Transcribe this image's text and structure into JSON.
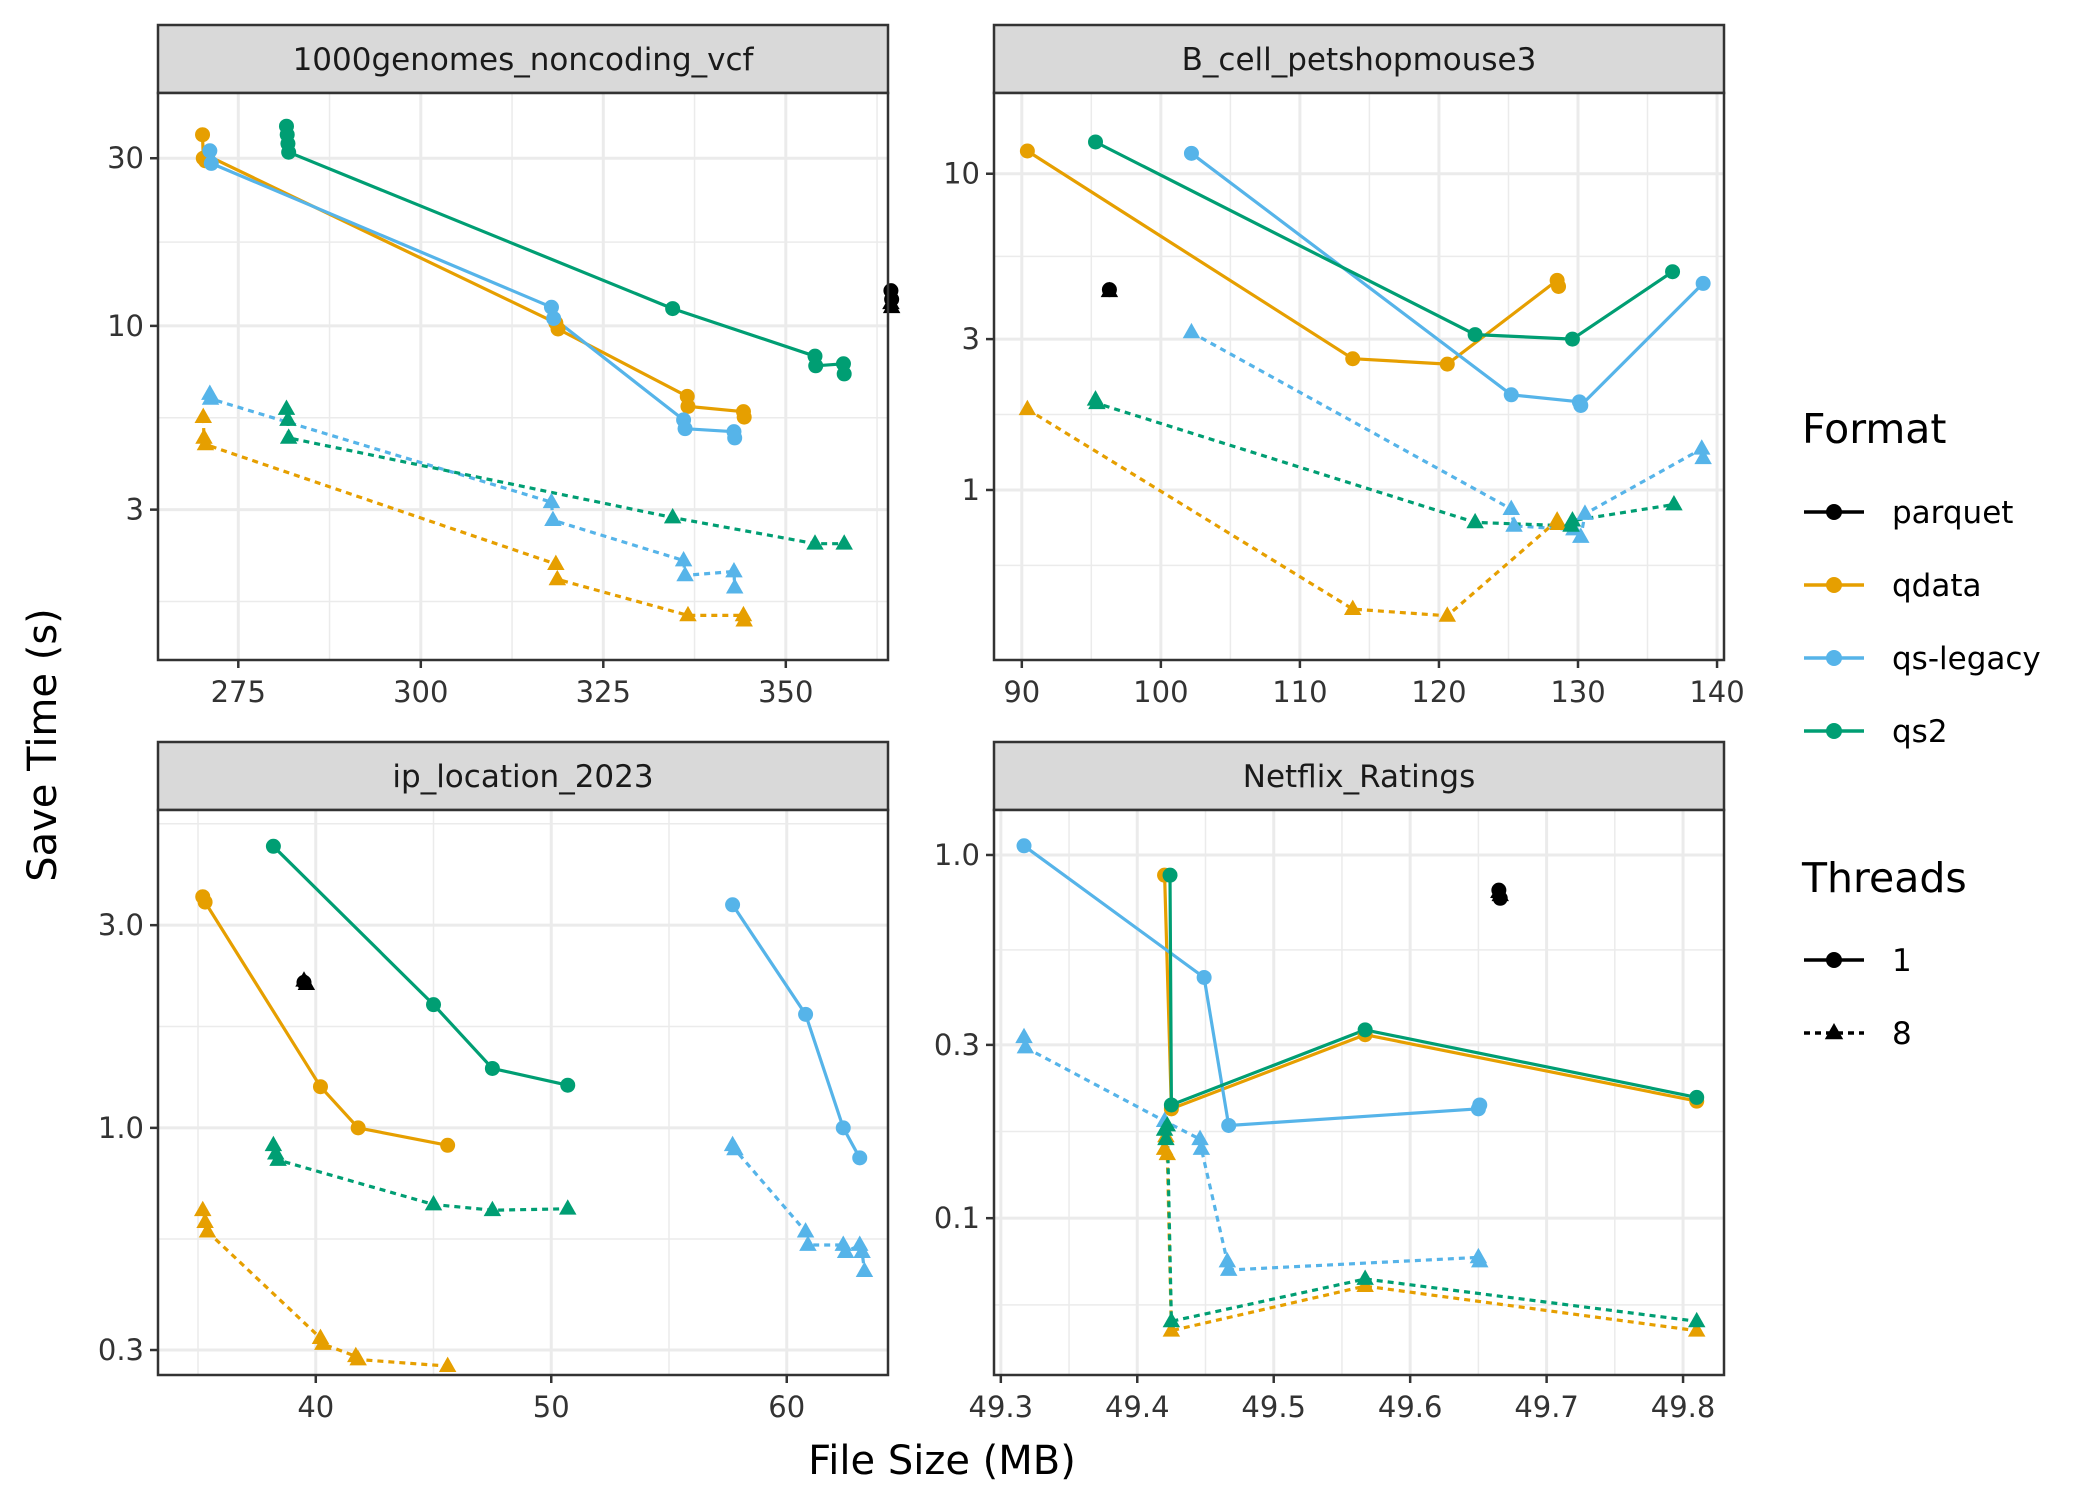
{
  "chart_data": {
    "type": "line",
    "xlabel": "File Size (MB)",
    "ylabel": "Save Time (s)",
    "y_scale": "log",
    "grid": true,
    "legend_position": "right",
    "legend": {
      "format_title": "Format",
      "formats": [
        {
          "name": "parquet",
          "color": "#000000"
        },
        {
          "name": "qdata",
          "color": "#E69F00"
        },
        {
          "name": "qs-legacy",
          "color": "#56B4E9"
        },
        {
          "name": "qs2",
          "color": "#009E73"
        }
      ],
      "threads_title": "Threads",
      "threads": [
        {
          "name": "1",
          "line": "solid",
          "shape": "circle"
        },
        {
          "name": "8",
          "line": "dotted",
          "shape": "triangle"
        }
      ]
    },
    "panels": [
      {
        "title": "1000genomes_noncoding_vcf",
        "xlim": [
          264,
          364
        ],
        "ylim": [
          1.12,
          46
        ],
        "x_ticks": [
          275,
          300,
          325,
          350
        ],
        "x_tick_labels": [
          "275",
          "300",
          "325",
          "350"
        ],
        "y_ticks": [
          3,
          10,
          30
        ],
        "y_tick_labels": [
          "3",
          "10",
          "30"
        ],
        "series": [
          {
            "format": "qdata",
            "threads": "1",
            "points": [
              [
                270.1,
                35.0
              ],
              [
                270.2,
                30.0
              ],
              [
                270.5,
                29.5
              ],
              [
                270.8,
                30.5
              ],
              [
                318.5,
                10.2
              ],
              [
                318.8,
                9.8
              ],
              [
                336.5,
                6.3
              ],
              [
                336.6,
                5.9
              ],
              [
                344.2,
                5.7
              ],
              [
                344.3,
                5.5
              ]
            ]
          },
          {
            "format": "qs-legacy",
            "threads": "1",
            "points": [
              [
                271.1,
                31.5
              ],
              [
                271.3,
                29.0
              ],
              [
                317.9,
                11.3
              ],
              [
                318.2,
                10.5
              ],
              [
                336.0,
                5.4
              ],
              [
                336.2,
                5.1
              ],
              [
                342.9,
                5.0
              ],
              [
                343.0,
                4.8
              ]
            ]
          },
          {
            "format": "qs2",
            "threads": "1",
            "points": [
              [
                281.6,
                37.0
              ],
              [
                281.7,
                35.0
              ],
              [
                281.8,
                33.0
              ],
              [
                281.9,
                31.2
              ],
              [
                334.5,
                11.2
              ],
              [
                354.0,
                8.2
              ],
              [
                354.1,
                7.7
              ],
              [
                357.9,
                7.8
              ],
              [
                358.0,
                7.3
              ]
            ]
          },
          {
            "format": "parquet",
            "threads": "1",
            "points": [
              [
                364.4,
                12.6
              ],
              [
                364.5,
                11.9
              ]
            ]
          },
          {
            "format": "qdata",
            "threads": "8",
            "points": [
              [
                270.2,
                5.5
              ],
              [
                270.3,
                4.8
              ],
              [
                270.5,
                4.6
              ],
              [
                318.5,
                2.1
              ],
              [
                318.7,
                1.9
              ],
              [
                336.6,
                1.5
              ],
              [
                344.2,
                1.5
              ],
              [
                344.3,
                1.45
              ]
            ]
          },
          {
            "format": "qs-legacy",
            "threads": "8",
            "points": [
              [
                271.1,
                6.4
              ],
              [
                271.2,
                6.2
              ],
              [
                317.9,
                3.15
              ],
              [
                318.1,
                2.8
              ],
              [
                336.0,
                2.15
              ],
              [
                336.2,
                1.95
              ],
              [
                342.9,
                2.0
              ],
              [
                343.0,
                1.8
              ]
            ]
          },
          {
            "format": "qs2",
            "threads": "8",
            "points": [
              [
                281.6,
                5.8
              ],
              [
                281.8,
                5.4
              ],
              [
                281.9,
                4.8
              ],
              [
                334.5,
                2.85
              ],
              [
                354.0,
                2.4
              ],
              [
                358.0,
                2.4
              ]
            ]
          },
          {
            "format": "parquet",
            "threads": "8",
            "points": [
              [
                364.4,
                11.6
              ],
              [
                364.5,
                11.3
              ]
            ]
          }
        ]
      },
      {
        "title": "B_cell_petshopmouse3",
        "xlim": [
          88,
          140.5
        ],
        "ylim": [
          0.29,
          18
        ],
        "x_ticks": [
          90,
          100,
          110,
          120,
          130,
          140
        ],
        "x_tick_labels": [
          "90",
          "100",
          "110",
          "120",
          "130",
          "140"
        ],
        "y_ticks": [
          1,
          3,
          10
        ],
        "y_tick_labels": [
          "1",
          "3",
          "10"
        ],
        "series": [
          {
            "format": "qdata",
            "threads": "1",
            "points": [
              [
                90.4,
                11.8
              ],
              [
                113.8,
                2.6
              ],
              [
                120.6,
                2.5
              ],
              [
                128.5,
                4.6
              ],
              [
                128.6,
                4.4
              ]
            ]
          },
          {
            "format": "qs-legacy",
            "threads": "1",
            "points": [
              [
                102.2,
                11.6
              ],
              [
                125.2,
                2.0
              ],
              [
                130.1,
                1.9
              ],
              [
                130.2,
                1.85
              ],
              [
                139.0,
                4.5
              ]
            ]
          },
          {
            "format": "qs2",
            "threads": "1",
            "points": [
              [
                95.3,
                12.6
              ],
              [
                122.6,
                3.1
              ],
              [
                129.6,
                3.0
              ],
              [
                136.8,
                4.9
              ]
            ]
          },
          {
            "format": "parquet",
            "threads": "1",
            "points": [
              [
                96.3,
                4.3
              ]
            ]
          },
          {
            "format": "qdata",
            "threads": "8",
            "points": [
              [
                90.4,
                1.8
              ],
              [
                113.8,
                0.42
              ],
              [
                120.6,
                0.4
              ],
              [
                128.5,
                0.8
              ],
              [
                128.6,
                0.78
              ]
            ]
          },
          {
            "format": "qs-legacy",
            "threads": "8",
            "points": [
              [
                102.2,
                3.15
              ],
              [
                125.2,
                0.87
              ],
              [
                125.4,
                0.77
              ],
              [
                129.7,
                0.75
              ],
              [
                130.2,
                0.71
              ],
              [
                130.5,
                0.84
              ],
              [
                138.9,
                1.35
              ],
              [
                139.0,
                1.26
              ]
            ]
          },
          {
            "format": "qs2",
            "threads": "8",
            "points": [
              [
                95.3,
                1.93
              ],
              [
                95.4,
                1.88
              ],
              [
                122.6,
                0.79
              ],
              [
                129.5,
                0.77
              ],
              [
                129.6,
                0.8
              ],
              [
                136.9,
                0.9
              ]
            ]
          },
          {
            "format": "parquet",
            "threads": "8",
            "points": [
              [
                96.3,
                4.25
              ]
            ]
          }
        ]
      },
      {
        "title": "ip_location_2023",
        "xlim": [
          33.3,
          64.3
        ],
        "ylim": [
          0.262,
          5.6
        ],
        "x_ticks": [
          40,
          50,
          60
        ],
        "x_tick_labels": [
          "40",
          "50",
          "60"
        ],
        "y_ticks": [
          0.3,
          1.0,
          3.0
        ],
        "y_tick_labels": [
          "0.3",
          "1.0",
          "3.0"
        ],
        "series": [
          {
            "format": "qdata",
            "threads": "1",
            "points": [
              [
                35.2,
                3.5
              ],
              [
                35.3,
                3.4
              ],
              [
                40.2,
                1.25
              ],
              [
                41.8,
                1.0
              ],
              [
                45.6,
                0.91
              ]
            ]
          },
          {
            "format": "qs-legacy",
            "threads": "1",
            "points": [
              [
                57.7,
                3.35
              ],
              [
                60.8,
                1.85
              ],
              [
                62.4,
                1.0
              ],
              [
                63.1,
                0.85
              ]
            ]
          },
          {
            "format": "qs2",
            "threads": "1",
            "points": [
              [
                38.2,
                4.6
              ],
              [
                45.0,
                1.95
              ],
              [
                47.5,
                1.38
              ],
              [
                50.7,
                1.26
              ]
            ]
          },
          {
            "format": "parquet",
            "threads": "1",
            "points": [
              [
                39.5,
                2.2
              ]
            ]
          },
          {
            "format": "qdata",
            "threads": "8",
            "points": [
              [
                35.2,
                0.64
              ],
              [
                35.3,
                0.6
              ],
              [
                35.4,
                0.57
              ],
              [
                40.2,
                0.32
              ],
              [
                40.3,
                0.31
              ],
              [
                41.7,
                0.29
              ],
              [
                41.8,
                0.285
              ],
              [
                45.6,
                0.275
              ]
            ]
          },
          {
            "format": "qs-legacy",
            "threads": "8",
            "points": [
              [
                57.7,
                0.91
              ],
              [
                57.8,
                0.89
              ],
              [
                60.8,
                0.57
              ],
              [
                60.9,
                0.53
              ],
              [
                62.4,
                0.53
              ],
              [
                62.5,
                0.51
              ],
              [
                63.1,
                0.53
              ],
              [
                63.2,
                0.51
              ],
              [
                63.3,
                0.46
              ]
            ]
          },
          {
            "format": "qs2",
            "threads": "8",
            "points": [
              [
                38.2,
                0.91
              ],
              [
                38.3,
                0.87
              ],
              [
                38.4,
                0.84
              ],
              [
                45.0,
                0.66
              ],
              [
                47.5,
                0.64
              ],
              [
                50.7,
                0.645
              ]
            ]
          },
          {
            "format": "parquet",
            "threads": "8",
            "points": [
              [
                39.5,
                2.22
              ],
              [
                39.6,
                2.18
              ]
            ]
          }
        ]
      },
      {
        "title": "Netflix_Ratings",
        "xlim": [
          49.295,
          49.83
        ],
        "ylim": [
          0.037,
          1.33
        ],
        "x_ticks": [
          49.3,
          49.4,
          49.5,
          49.6,
          49.7,
          49.8
        ],
        "x_tick_labels": [
          "49.3",
          "49.4",
          "49.5",
          "49.6",
          "49.7",
          "49.8"
        ],
        "y_ticks": [
          0.1,
          0.3,
          1.0
        ],
        "y_tick_labels": [
          "0.1",
          "0.3",
          "1.0"
        ],
        "series": [
          {
            "format": "qdata",
            "threads": "1",
            "points": [
              [
                49.42,
                0.88
              ],
              [
                49.425,
                0.2
              ],
              [
                49.567,
                0.32
              ],
              [
                49.81,
                0.21
              ]
            ]
          },
          {
            "format": "qs-legacy",
            "threads": "1",
            "points": [
              [
                49.317,
                1.06
              ],
              [
                49.449,
                0.46
              ],
              [
                49.467,
                0.18
              ],
              [
                49.65,
                0.2
              ],
              [
                49.651,
                0.205
              ]
            ]
          },
          {
            "format": "qs2",
            "threads": "1",
            "points": [
              [
                49.424,
                0.88
              ],
              [
                49.425,
                0.205
              ],
              [
                49.567,
                0.33
              ],
              [
                49.81,
                0.215
              ]
            ]
          },
          {
            "format": "parquet",
            "threads": "1",
            "points": [
              [
                49.665,
                0.8
              ],
              [
                49.666,
                0.76
              ]
            ]
          },
          {
            "format": "qdata",
            "threads": "8",
            "points": [
              [
                49.42,
                0.155
              ],
              [
                49.421,
                0.168
              ],
              [
                49.422,
                0.15
              ],
              [
                49.425,
                0.049
              ],
              [
                49.567,
                0.065
              ],
              [
                49.81,
                0.049
              ]
            ]
          },
          {
            "format": "qs-legacy",
            "threads": "8",
            "points": [
              [
                49.317,
                0.315
              ],
              [
                49.318,
                0.295
              ],
              [
                49.42,
                0.185
              ],
              [
                49.446,
                0.165
              ],
              [
                49.447,
                0.155
              ],
              [
                49.466,
                0.076
              ],
              [
                49.467,
                0.072
              ],
              [
                49.65,
                0.078
              ],
              [
                49.651,
                0.076
              ]
            ]
          },
          {
            "format": "qs2",
            "threads": "8",
            "points": [
              [
                49.42,
                0.175
              ],
              [
                49.421,
                0.165
              ],
              [
                49.422,
                0.18
              ],
              [
                49.425,
                0.052
              ],
              [
                49.567,
                0.068
              ],
              [
                49.81,
                0.052
              ]
            ]
          },
          {
            "format": "parquet",
            "threads": "8",
            "points": [
              [
                49.665,
                0.79
              ],
              [
                49.666,
                0.775
              ]
            ]
          }
        ]
      }
    ]
  }
}
